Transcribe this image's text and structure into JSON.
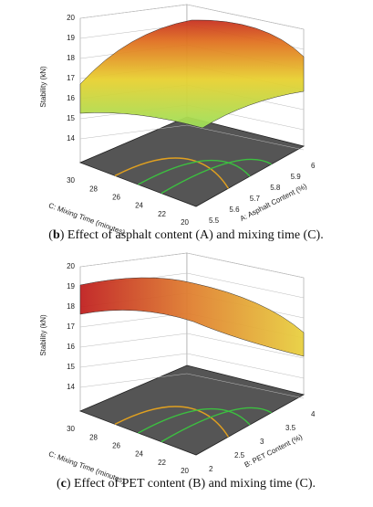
{
  "panels": [
    {
      "z_label": "Stability (kN)",
      "zticks": [
        14,
        15,
        16,
        17,
        18,
        19,
        20
      ],
      "left_axis": {
        "label": "C: Mixing Time (minutes)",
        "ticks": [
          30,
          28,
          26,
          24,
          22,
          20
        ]
      },
      "right_axis": {
        "label": "A: Asphalt Content (%)",
        "ticks": [
          5.5,
          5.6,
          5.7,
          5.8,
          5.9,
          6
        ]
      },
      "caption": [
        "(",
        "b",
        ") Effect of asphalt content (A) and mixing time (C)."
      ]
    },
    {
      "z_label": "Stability (kN)",
      "zticks": [
        14,
        15,
        16,
        17,
        18,
        19,
        20
      ],
      "left_axis": {
        "label": "C: Mixing Time (minutes)",
        "ticks": [
          30,
          28,
          26,
          24,
          22,
          20
        ]
      },
      "right_axis": {
        "label": "B: PET Content (%)",
        "ticks": [
          2,
          2.5,
          3,
          3.5,
          4
        ]
      },
      "caption": [
        "(",
        "c",
        ") Effect of PET content (B) and mixing time (C)."
      ]
    }
  ]
}
